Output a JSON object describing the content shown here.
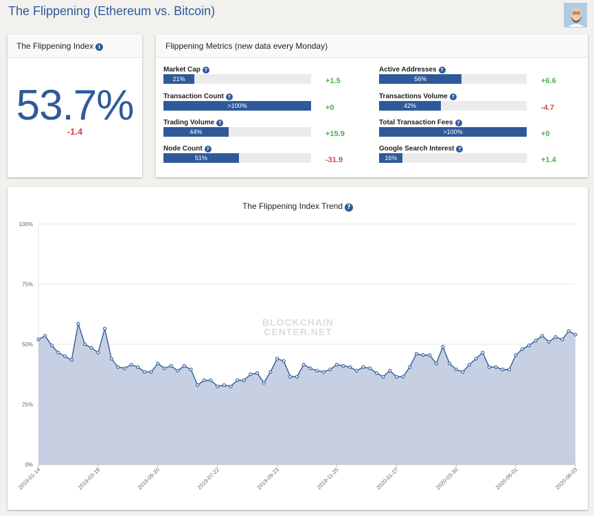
{
  "header": {
    "title": "The Flippening (Ethereum vs. Bitcoin)"
  },
  "index_card": {
    "title": "The Flippening Index",
    "info_icon": "info-icon",
    "value": "53.7%",
    "change": "-1.4"
  },
  "metrics_card": {
    "title": "Flippening Metrics (new data every Monday)",
    "metrics": [
      {
        "label": "Market Cap",
        "bar_text": "21%",
        "fill": 0.21,
        "change": "+1.5",
        "trend": "pos"
      },
      {
        "label": "Transaction Count",
        "bar_text": ">100%",
        "fill": 1.0,
        "change": "+0",
        "trend": "pos"
      },
      {
        "label": "Trading Volume",
        "bar_text": "44%",
        "fill": 0.44,
        "change": "+15.9",
        "trend": "pos"
      },
      {
        "label": "Node Count",
        "bar_text": "51%",
        "fill": 0.51,
        "change": "-31.9",
        "trend": "neg"
      },
      {
        "label": "Active Addresses",
        "bar_text": "56%",
        "fill": 0.56,
        "change": "+6.6",
        "trend": "pos"
      },
      {
        "label": "Transactions Volume",
        "bar_text": "42%",
        "fill": 0.42,
        "change": "-4.7",
        "trend": "neg"
      },
      {
        "label": "Total Transaction Fees",
        "bar_text": ">100%",
        "fill": 1.0,
        "change": "+0",
        "trend": "pos"
      },
      {
        "label": "Google Search Interest",
        "bar_text": "16%",
        "fill": 0.16,
        "change": "+1.4",
        "trend": "pos"
      }
    ]
  },
  "watermark": {
    "line1": "BLOCKCHAIN",
    "line2": "CENTER.NET"
  },
  "colors": {
    "accent": "#2f5a9a",
    "positive": "#4cae4c",
    "negative": "#cf4747",
    "area_fill": "#c3cde0"
  },
  "chart_data": {
    "type": "area",
    "title": "The Flippening Index Trend",
    "xlabel": "",
    "ylabel": "",
    "ylim": [
      0,
      100
    ],
    "y_ticks": [
      "0%",
      "25%",
      "50%",
      "75%",
      "100%"
    ],
    "y_tick_values": [
      0,
      25,
      50,
      75,
      100
    ],
    "x_ticks": [
      "2019-01-14",
      "2019-03-18",
      "2019-05-20",
      "2019-07-22",
      "2019-09-23",
      "2019-11-25",
      "2020-01-27",
      "2020-03-30",
      "2020-06-01",
      "2020-08-03"
    ],
    "x_tick_index": [
      0,
      9,
      18,
      27,
      36,
      45,
      54,
      63,
      72,
      81
    ],
    "grid": true,
    "legend": "none",
    "series": [
      {
        "values": [
          52,
          53.5,
          49.5,
          46.5,
          45,
          43.5,
          58.5,
          50,
          48.5,
          46.5,
          56.5,
          44,
          40.5,
          40,
          41.5,
          40.5,
          38.5,
          38.5,
          42,
          40,
          41,
          39,
          41,
          39.5,
          33,
          35,
          35,
          32.5,
          33,
          32.5,
          35,
          35,
          37.5,
          38,
          34,
          38.5,
          44,
          43,
          36.5,
          36.5,
          41.5,
          40,
          39,
          38.5,
          39.5,
          41.5,
          41,
          40.5,
          39,
          40.5,
          40,
          38,
          36.5,
          39,
          36.5,
          36.5,
          40.5,
          46,
          45.5,
          45.5,
          42,
          49,
          42,
          39.5,
          38.5,
          41.5,
          44,
          46.5,
          40.5,
          40.5,
          39.5,
          39.5,
          45.5,
          48,
          49.5,
          51.5,
          53.5,
          51,
          53,
          52,
          55.5,
          54
        ]
      }
    ]
  }
}
